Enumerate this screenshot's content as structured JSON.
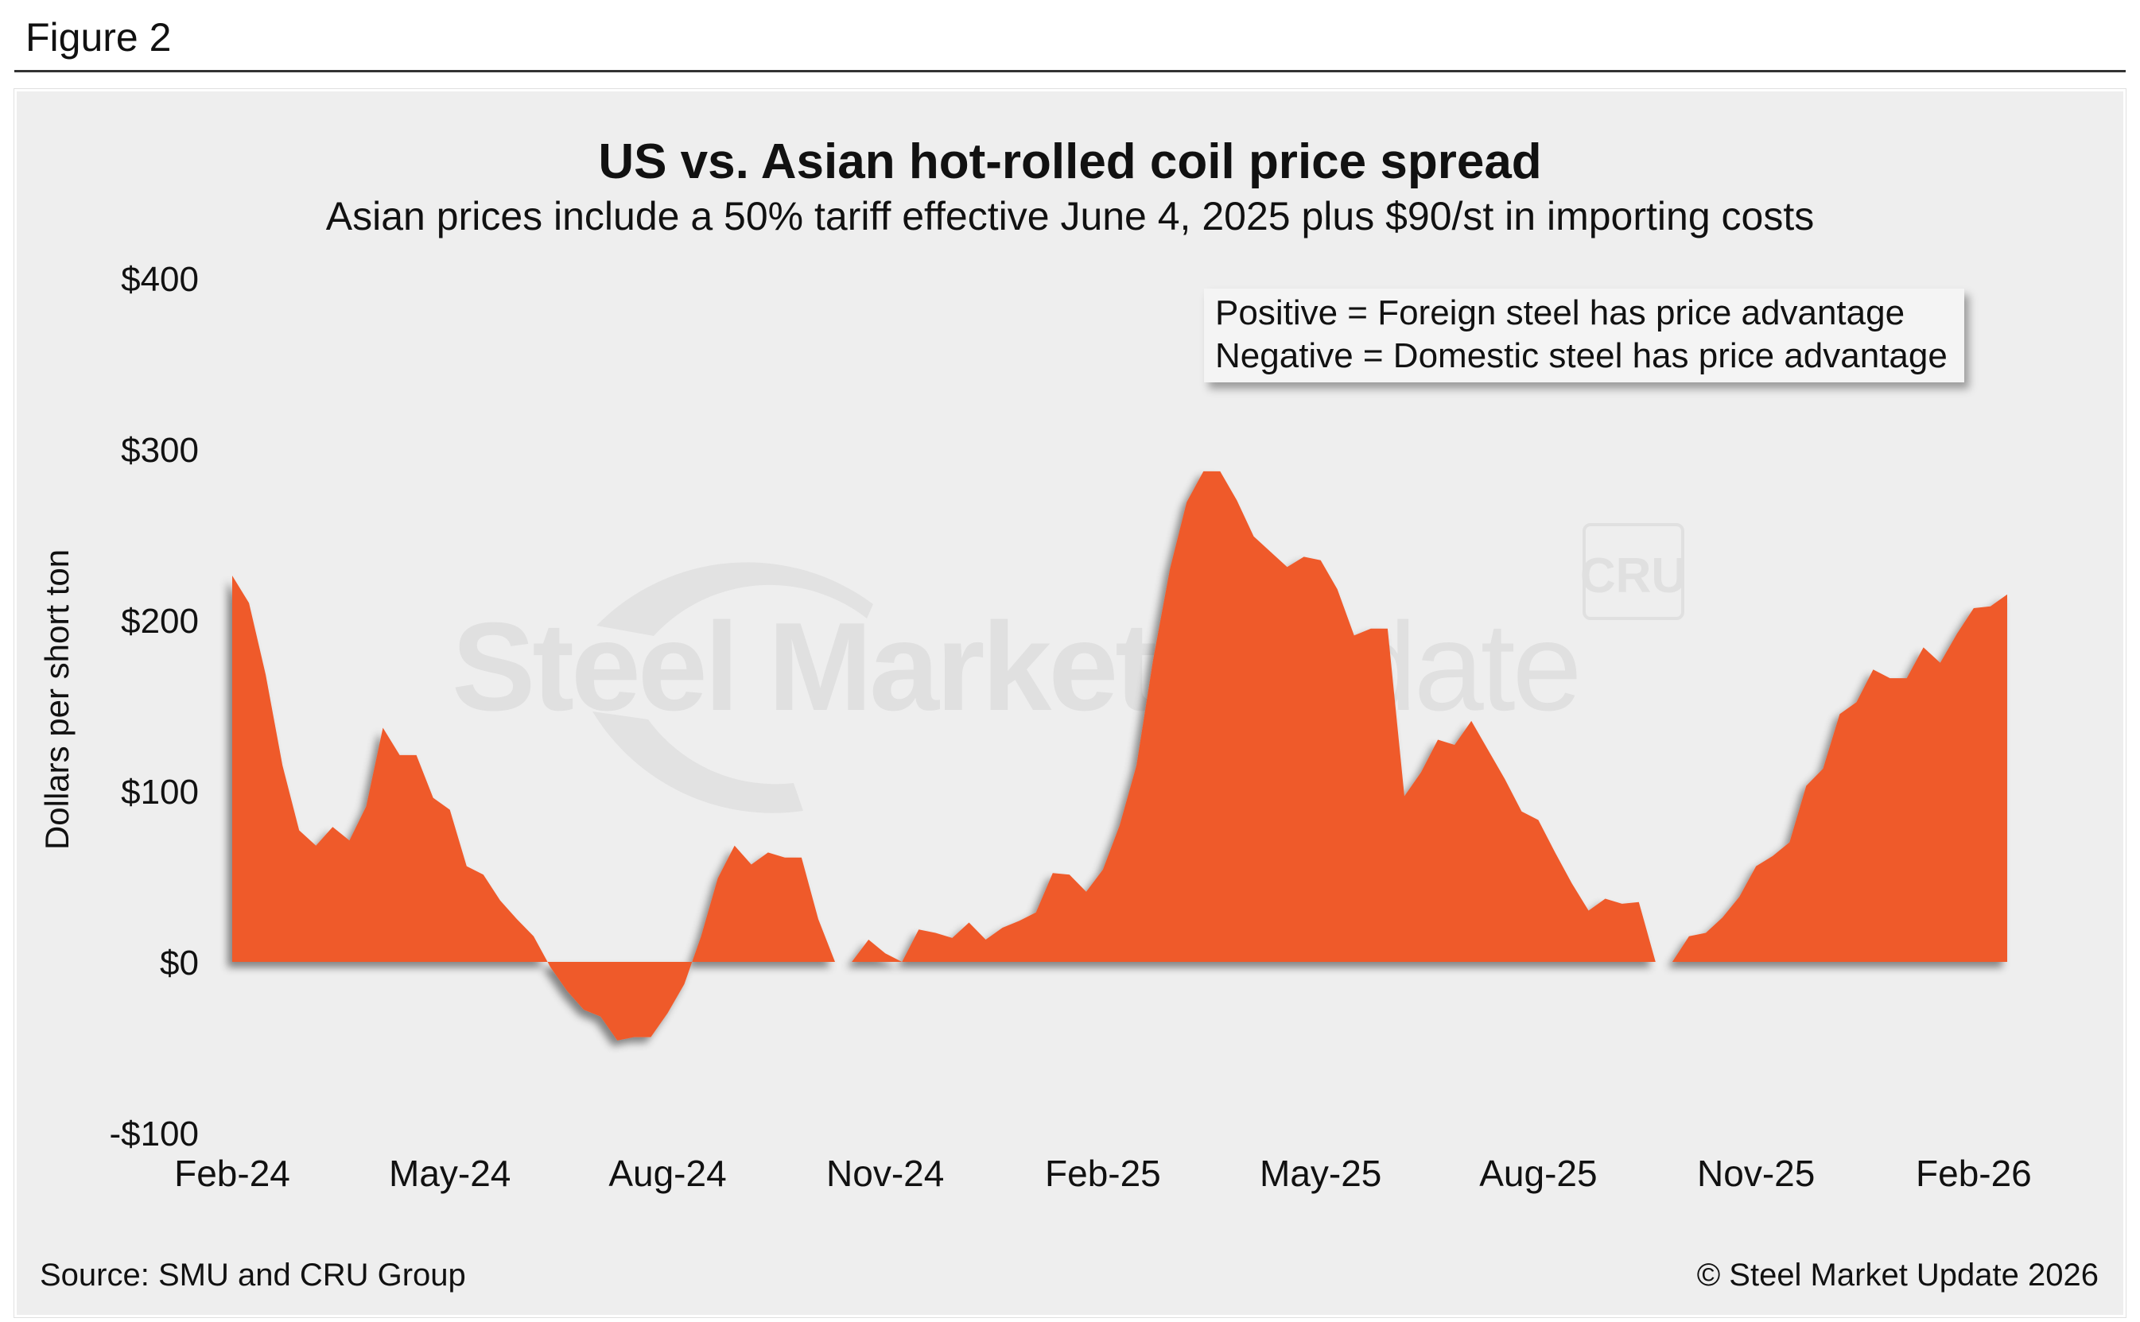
{
  "figure_label": "Figure 2",
  "source": "Source: SMU and CRU Group",
  "copyright": "© Steel Market Update 2026",
  "watermark": {
    "brand_bold": "Steel Market",
    "brand_light": "Update",
    "partner": "CRU"
  },
  "legend": {
    "positive": "Positive = Foreign steel has price advantage",
    "negative": "Negative = Domestic steel has price advantage"
  },
  "colors": {
    "area": "#ef5a2b",
    "background": "#eeeeee"
  },
  "chart_data": {
    "type": "area",
    "title": "US vs. Asian hot-rolled coil price spread",
    "subtitle": "Asian prices include a 50% tariff effective June 4, 2025 plus $90/st in importing costs",
    "ylabel": "Dollars per short ton",
    "xlabel": "",
    "ylim": [
      -100,
      400
    ],
    "yticks": [
      -100,
      0,
      100,
      200,
      300,
      400
    ],
    "ytick_labels": [
      "-$100",
      "$0",
      "$100",
      "$200",
      "$300",
      "$400"
    ],
    "x_tick_labels": [
      "Feb-24",
      "May-24",
      "Aug-24",
      "Nov-24",
      "Feb-25",
      "May-25",
      "Aug-25",
      "Nov-25",
      "Feb-26"
    ],
    "x_tick_positions_weeks": [
      0,
      13,
      26,
      39,
      52,
      65,
      78,
      91,
      104
    ],
    "x_unit": "weeks since Feb-24",
    "series": [
      {
        "name": "Price spread",
        "points": [
          [
            0,
            226
          ],
          [
            1,
            210
          ],
          [
            2,
            168
          ],
          [
            3,
            115
          ],
          [
            4,
            77
          ],
          [
            5,
            68
          ],
          [
            6,
            79
          ],
          [
            7,
            71
          ],
          [
            8,
            91
          ],
          [
            9,
            137
          ],
          [
            10,
            121
          ],
          [
            11,
            121
          ],
          [
            12,
            96
          ],
          [
            13,
            89
          ],
          [
            14,
            56
          ],
          [
            15,
            51
          ],
          [
            16,
            36
          ],
          [
            17,
            25
          ],
          [
            18,
            15
          ],
          [
            19,
            -3
          ],
          [
            20,
            -17
          ],
          [
            21,
            -28
          ],
          [
            22,
            -32
          ],
          [
            23,
            -46
          ],
          [
            24,
            -44
          ],
          [
            25,
            -44
          ],
          [
            26,
            -30
          ],
          [
            27,
            -13
          ],
          [
            28,
            15
          ],
          [
            29,
            49
          ],
          [
            30,
            68
          ],
          [
            31,
            57
          ],
          [
            32,
            64
          ],
          [
            33,
            61
          ],
          [
            34,
            61
          ],
          [
            35,
            25
          ],
          [
            36,
            0
          ],
          [
            37,
            0
          ],
          [
            38,
            13
          ],
          [
            39,
            5
          ],
          [
            40,
            0
          ],
          [
            41,
            19
          ],
          [
            42,
            17
          ],
          [
            43,
            14
          ],
          [
            44,
            23
          ],
          [
            45,
            13
          ],
          [
            46,
            20
          ],
          [
            47,
            24
          ],
          [
            48,
            29
          ],
          [
            49,
            52
          ],
          [
            50,
            51
          ],
          [
            51,
            41
          ],
          [
            52,
            54
          ],
          [
            53,
            80
          ],
          [
            54,
            115
          ],
          [
            55,
            177
          ],
          [
            56,
            230
          ],
          [
            57,
            269
          ],
          [
            58,
            287
          ],
          [
            59,
            287
          ],
          [
            60,
            270
          ],
          [
            61,
            249
          ],
          [
            62,
            240
          ],
          [
            63,
            231
          ],
          [
            64,
            237
          ],
          [
            65,
            235
          ],
          [
            66,
            218
          ],
          [
            67,
            191
          ],
          [
            68,
            195
          ],
          [
            69,
            195
          ],
          [
            70,
            97
          ],
          [
            71,
            111
          ],
          [
            72,
            130
          ],
          [
            73,
            127
          ],
          [
            74,
            141
          ],
          [
            75,
            124
          ],
          [
            76,
            107
          ],
          [
            77,
            88
          ],
          [
            78,
            83
          ],
          [
            79,
            64
          ],
          [
            80,
            46
          ],
          [
            81,
            30
          ],
          [
            82,
            37
          ],
          [
            83,
            34
          ],
          [
            84,
            35
          ],
          [
            85,
            0
          ],
          [
            86,
            0
          ],
          [
            87,
            15
          ],
          [
            88,
            17
          ],
          [
            89,
            26
          ],
          [
            90,
            38
          ],
          [
            91,
            56
          ],
          [
            92,
            62
          ],
          [
            93,
            70
          ],
          [
            94,
            103
          ],
          [
            95,
            113
          ],
          [
            96,
            145
          ],
          [
            97,
            152
          ],
          [
            98,
            171
          ],
          [
            99,
            166
          ],
          [
            100,
            166
          ],
          [
            101,
            184
          ],
          [
            102,
            175
          ],
          [
            103,
            192
          ],
          [
            104,
            207
          ],
          [
            105,
            208
          ],
          [
            106,
            215
          ]
        ]
      }
    ]
  }
}
